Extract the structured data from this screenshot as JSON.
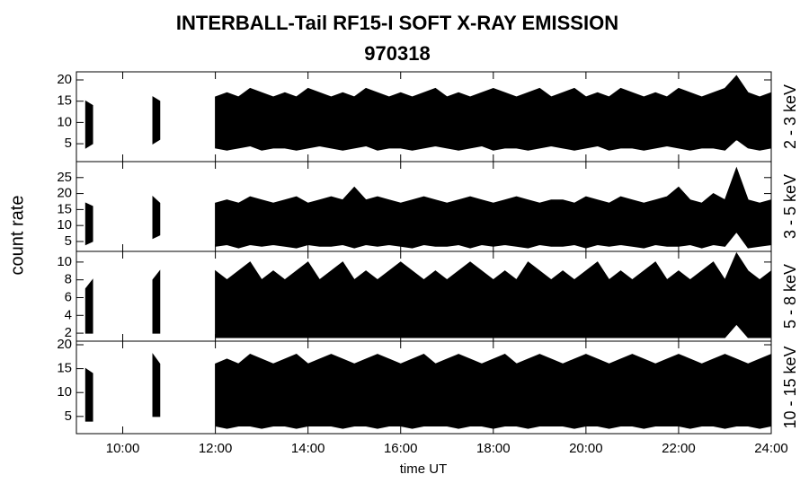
{
  "chart_data": {
    "type": "band",
    "title": "INTERBALL-Tail RF15-I SOFT X-RAY EMISSION",
    "subtitle": "970318",
    "x_label": "time UT",
    "y_label": "count rate",
    "color": "#000000",
    "xlim": [
      9,
      24
    ],
    "xticks": [
      {
        "value": 10,
        "label": "10:00"
      },
      {
        "value": 12,
        "label": "12:00"
      },
      {
        "value": 14,
        "label": "14:00"
      },
      {
        "value": 16,
        "label": "16:00"
      },
      {
        "value": 18,
        "label": "18:00"
      },
      {
        "value": 20,
        "label": "20:00"
      },
      {
        "value": 22,
        "label": "22:00"
      },
      {
        "value": 24,
        "label": "24:00"
      }
    ],
    "x": [
      9.2,
      9.35,
      9.9,
      10.65,
      10.8,
      11.5,
      12,
      12.25,
      12.5,
      12.75,
      13,
      13.25,
      13.5,
      13.75,
      14,
      14.25,
      14.5,
      14.75,
      15,
      15.25,
      15.5,
      15.75,
      16,
      16.25,
      16.5,
      16.75,
      17,
      17.25,
      17.5,
      17.75,
      18,
      18.25,
      18.5,
      18.75,
      19,
      19.25,
      19.5,
      19.75,
      20,
      20.25,
      20.5,
      20.75,
      21,
      21.25,
      21.5,
      21.75,
      22,
      22.25,
      22.5,
      22.75,
      23,
      23.25,
      23.5,
      23.75,
      24
    ],
    "panels": [
      {
        "name": "2 - 3 keV",
        "ylim": [
          0.8,
          21.9
        ],
        "yticks": [
          5,
          10,
          15,
          20
        ],
        "high": [
          15,
          14,
          null,
          16,
          15,
          null,
          16,
          17,
          16,
          18,
          17,
          16,
          17,
          16,
          18,
          17,
          16,
          17,
          16,
          18,
          17,
          16,
          17,
          16,
          17,
          18,
          16,
          17,
          16,
          17,
          18,
          17,
          16,
          17,
          18,
          16,
          17,
          18,
          16,
          17,
          16,
          18,
          17,
          16,
          17,
          16,
          18,
          17,
          16,
          17,
          18,
          21,
          17,
          16,
          17
        ],
        "low": [
          4,
          5,
          null,
          5,
          6,
          null,
          4,
          3.5,
          4,
          4.5,
          3.5,
          4,
          4,
          3.5,
          4,
          4.5,
          4,
          3.5,
          4,
          4.5,
          3.5,
          4,
          4,
          3.5,
          4,
          4.5,
          4,
          3.5,
          4,
          4.5,
          3.5,
          4,
          4,
          3.5,
          4,
          4.5,
          4,
          3.5,
          4,
          4.5,
          3.5,
          4,
          4,
          3.5,
          4,
          4.5,
          4,
          3.5,
          4,
          4,
          3.5,
          6,
          4,
          3.5,
          4
        ]
      },
      {
        "name": "3 - 5 keV",
        "ylim": [
          1.9,
          30
        ],
        "yticks": [
          5,
          10,
          15,
          20,
          25
        ],
        "high": [
          17,
          16,
          null,
          19,
          17,
          null,
          17,
          18,
          17,
          19,
          18,
          17,
          18,
          19,
          17,
          18,
          19,
          18,
          22,
          18,
          19,
          18,
          17,
          18,
          19,
          18,
          17,
          18,
          19,
          18,
          17,
          18,
          19,
          18,
          17,
          18,
          18,
          17,
          19,
          18,
          17,
          19,
          18,
          17,
          18,
          19,
          22,
          18,
          17,
          20,
          18,
          28,
          18,
          17,
          18
        ],
        "low": [
          4,
          5,
          null,
          6,
          7,
          null,
          3.5,
          4,
          3,
          4,
          3.5,
          4,
          3.5,
          3,
          4,
          3.5,
          3.5,
          4,
          3,
          4,
          3.5,
          4,
          3.5,
          3,
          4,
          3.5,
          3.5,
          4,
          3,
          4,
          3.5,
          4,
          3.5,
          3,
          4,
          3.5,
          3.5,
          4,
          3,
          4,
          3.5,
          4,
          3.5,
          3,
          4,
          3.5,
          3.5,
          4,
          3,
          4,
          3.5,
          8,
          3,
          3.5,
          4
        ]
      },
      {
        "name": "5 - 8 keV",
        "ylim": [
          1.1,
          11.2
        ],
        "yticks": [
          2,
          4,
          6,
          8,
          10
        ],
        "high": [
          7,
          8,
          null,
          8,
          9,
          null,
          9,
          8,
          9,
          10,
          8,
          9,
          8,
          9,
          10,
          8,
          9,
          10,
          8,
          9,
          8,
          9,
          10,
          9,
          8,
          9,
          8,
          9,
          10,
          9,
          8,
          9,
          8,
          10,
          9,
          8,
          9,
          8,
          9,
          10,
          8,
          9,
          8,
          9,
          10,
          8,
          9,
          8,
          9,
          10,
          8,
          11,
          9,
          8,
          9
        ],
        "low": [
          2,
          2,
          null,
          2,
          2,
          null,
          1.5,
          1.5,
          1.5,
          1.5,
          1.5,
          1.5,
          1.5,
          1.5,
          1.5,
          1.5,
          1.5,
          1.5,
          1.5,
          1.5,
          1.5,
          1.5,
          1.5,
          1.5,
          1.5,
          1.5,
          1.5,
          1.5,
          1.5,
          1.5,
          1.5,
          1.5,
          1.5,
          1.5,
          1.5,
          1.5,
          1.5,
          1.5,
          1.5,
          1.5,
          1.5,
          1.5,
          1.5,
          1.5,
          1.5,
          1.5,
          1.5,
          1.5,
          1.5,
          1.5,
          1.5,
          3,
          1.5,
          1.5,
          1.5
        ]
      },
      {
        "name": "10 - 15 keV",
        "ylim": [
          1.4,
          20.75
        ],
        "yticks": [
          5,
          10,
          15,
          20
        ],
        "high": [
          15,
          14,
          null,
          18,
          16,
          null,
          16,
          17,
          16,
          18,
          17,
          16,
          17,
          18,
          16,
          17,
          18,
          17,
          16,
          17,
          18,
          17,
          16,
          17,
          18,
          16,
          17,
          18,
          17,
          16,
          17,
          18,
          16,
          17,
          18,
          17,
          16,
          17,
          18,
          17,
          16,
          17,
          18,
          17,
          16,
          17,
          18,
          17,
          16,
          17,
          18,
          17,
          16,
          17,
          18
        ],
        "low": [
          4,
          4,
          null,
          5,
          5,
          null,
          3,
          2.5,
          3,
          3,
          2.5,
          3,
          3,
          2.5,
          3,
          3,
          3,
          2.5,
          3,
          3,
          2.5,
          3,
          3,
          2.5,
          3,
          3,
          3,
          2.5,
          3,
          3,
          2.5,
          3,
          3,
          2.5,
          3,
          3,
          3,
          2.5,
          3,
          3,
          2.5,
          3,
          3,
          2.5,
          3,
          3,
          3,
          2.5,
          3,
          3,
          2.5,
          3,
          3,
          2.5,
          3
        ]
      }
    ]
  }
}
